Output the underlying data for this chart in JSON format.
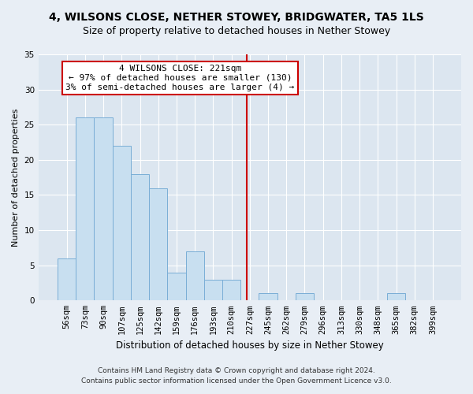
{
  "title": "4, WILSONS CLOSE, NETHER STOWEY, BRIDGWATER, TA5 1LS",
  "subtitle": "Size of property relative to detached houses in Nether Stowey",
  "xlabel": "Distribution of detached houses by size in Nether Stowey",
  "ylabel": "Number of detached properties",
  "bar_labels": [
    "56sqm",
    "73sqm",
    "90sqm",
    "107sqm",
    "125sqm",
    "142sqm",
    "159sqm",
    "176sqm",
    "193sqm",
    "210sqm",
    "227sqm",
    "245sqm",
    "262sqm",
    "279sqm",
    "296sqm",
    "313sqm",
    "330sqm",
    "348sqm",
    "365sqm",
    "382sqm",
    "399sqm"
  ],
  "bar_values": [
    6,
    26,
    26,
    22,
    18,
    16,
    4,
    7,
    3,
    3,
    0,
    1,
    0,
    1,
    0,
    0,
    0,
    0,
    1,
    0,
    0
  ],
  "bar_color": "#c8dff0",
  "bar_edge_color": "#7aaed6",
  "vline_color": "#cc0000",
  "annotation_title": "4 WILSONS CLOSE: 221sqm",
  "annotation_line1": "← 97% of detached houses are smaller (130)",
  "annotation_line2": "3% of semi-detached houses are larger (4) →",
  "annotation_box_facecolor": "white",
  "annotation_box_edgecolor": "#cc0000",
  "ylim": [
    0,
    35
  ],
  "yticks": [
    0,
    5,
    10,
    15,
    20,
    25,
    30,
    35
  ],
  "background_color": "#e8eef5",
  "plot_bg_color": "#dce6f0",
  "grid_color": "white",
  "footer_line1": "Contains HM Land Registry data © Crown copyright and database right 2024.",
  "footer_line2": "Contains public sector information licensed under the Open Government Licence v3.0.",
  "title_fontsize": 10,
  "subtitle_fontsize": 9,
  "xlabel_fontsize": 8.5,
  "ylabel_fontsize": 8,
  "tick_fontsize": 7.5,
  "annotation_fontsize": 8,
  "footer_fontsize": 6.5,
  "vline_x_index": 9.85
}
